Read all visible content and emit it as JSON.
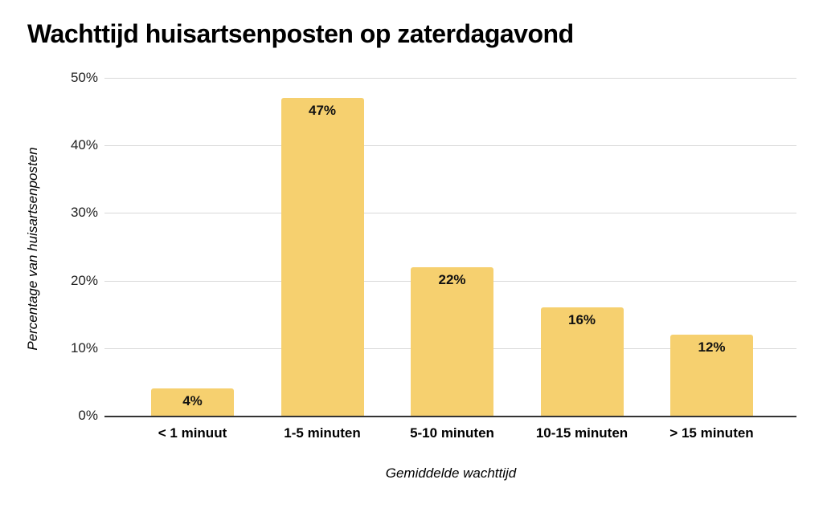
{
  "chart_data": {
    "type": "bar",
    "title": "Wachttijd huisartsenposten op zaterdagavond",
    "xlabel": "Gemiddelde wachttijd",
    "ylabel": "Percentage van huisartsenposten",
    "categories": [
      "< 1 minuut",
      "1-5 minuten",
      "5-10 minuten",
      "10-15 minuten",
      "> 15 minuten"
    ],
    "values": [
      4,
      47,
      22,
      16,
      12
    ],
    "value_labels": [
      "4%",
      "47%",
      "22%",
      "16%",
      "12%"
    ],
    "ylim": [
      0,
      50
    ],
    "yticks": [
      "0%",
      "10%",
      "20%",
      "30%",
      "40%",
      "50%"
    ],
    "grid": true,
    "legend": null,
    "bar_color": "#f6d06f"
  }
}
